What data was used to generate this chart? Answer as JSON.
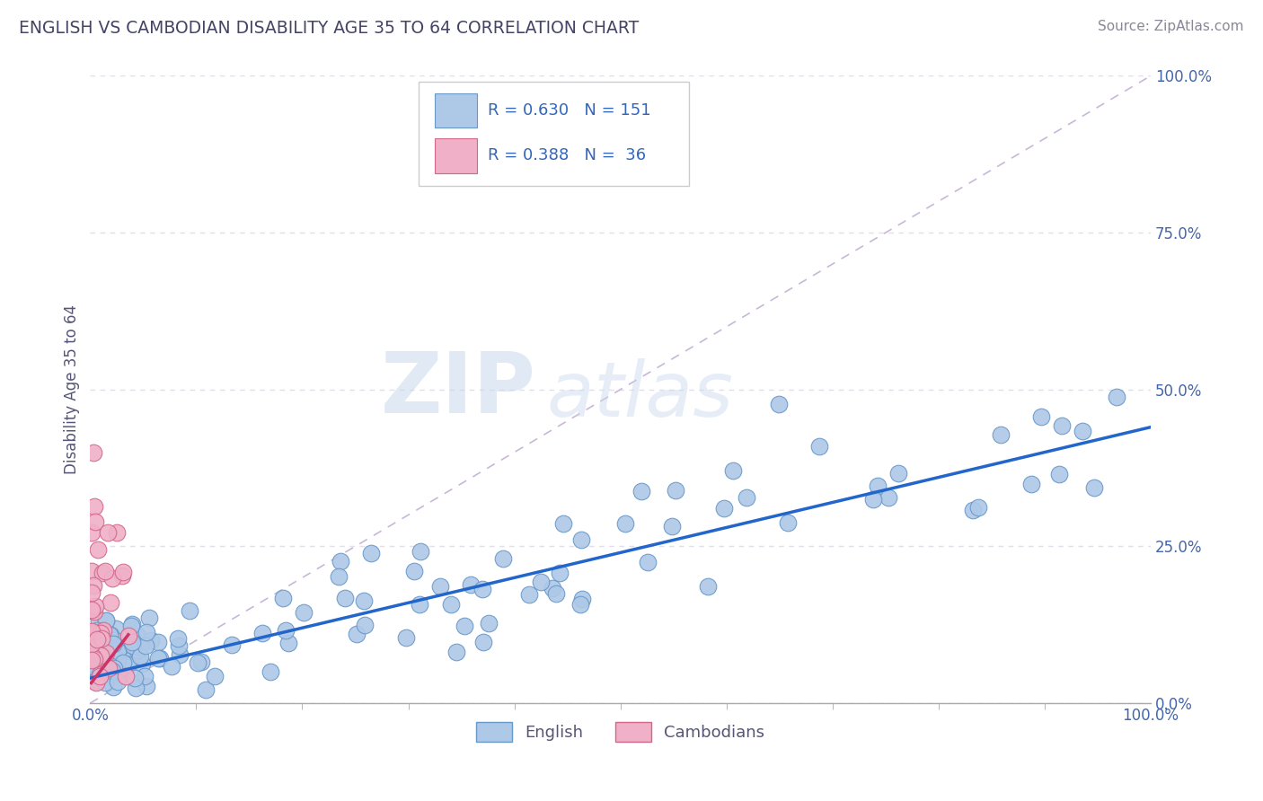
{
  "title": "ENGLISH VS CAMBODIAN DISABILITY AGE 35 TO 64 CORRELATION CHART",
  "source": "Source: ZipAtlas.com",
  "ylabel": "Disability Age 35 to 64",
  "xlim": [
    0,
    1
  ],
  "ylim": [
    0,
    1
  ],
  "y_tick_vals": [
    0.0,
    0.25,
    0.5,
    0.75,
    1.0
  ],
  "y_tick_labels": [
    "0.0%",
    "25.0%",
    "50.0%",
    "75.0%",
    "100.0%"
  ],
  "english_R": 0.63,
  "english_N": 151,
  "cambodian_R": 0.388,
  "cambodian_N": 36,
  "english_color": "#aec8e8",
  "english_edge_color": "#6898c8",
  "cambodian_color": "#f0b0c8",
  "cambodian_edge_color": "#d06888",
  "english_line_color": "#2266cc",
  "cambodian_line_color": "#cc3366",
  "diagonal_color": "#c8b8d8",
  "legend_text_color": "#3366bb",
  "watermark_color": "#d8e4f0",
  "background_color": "#ffffff",
  "grid_color": "#e0e0e8",
  "title_color": "#444466",
  "axis_color": "#aaaaaa",
  "tick_label_color": "#4466aa"
}
